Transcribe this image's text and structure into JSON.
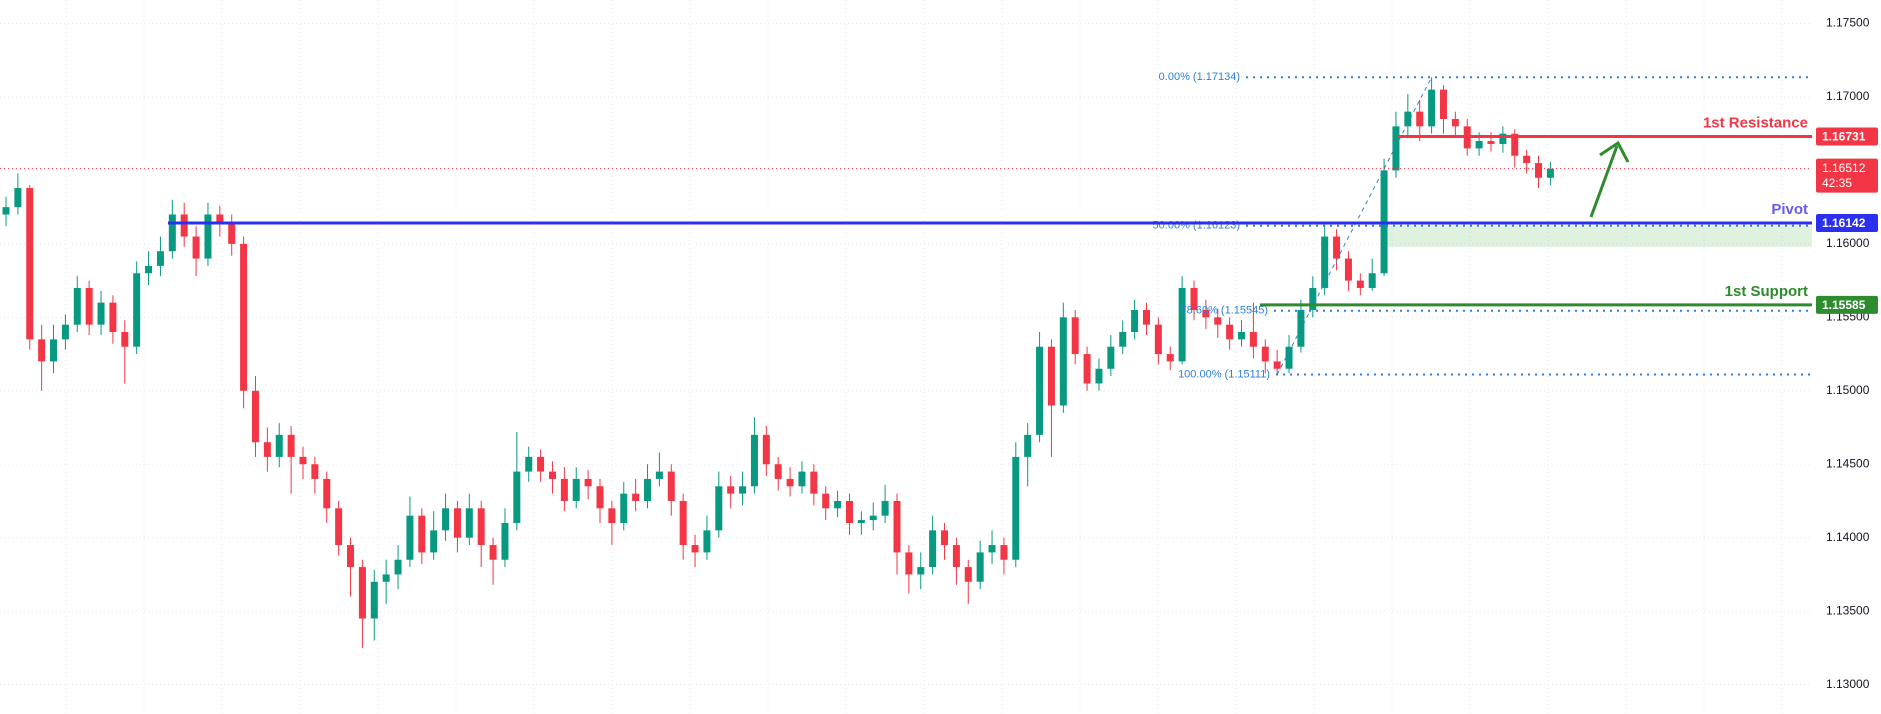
{
  "chart_data": {
    "type": "candlestick",
    "ylim": [
      1.128,
      1.1766
    ],
    "yticks": [
      {
        "value": 1.175,
        "label": "1.17500"
      },
      {
        "value": 1.17,
        "label": "1.17000"
      },
      {
        "value": 1.165,
        "label": "1.16500"
      },
      {
        "value": 1.16,
        "label": "1.16000"
      },
      {
        "value": 1.155,
        "label": "1.15500"
      },
      {
        "value": 1.15,
        "label": "1.15000"
      },
      {
        "value": 1.145,
        "label": "1.14500"
      },
      {
        "value": 1.14,
        "label": "1.14000"
      },
      {
        "value": 1.135,
        "label": "1.13500"
      },
      {
        "value": 1.13,
        "label": "1.13000"
      }
    ],
    "grid": true,
    "up_color": "#089981",
    "down_color": "#f23645",
    "candles": {
      "open": [
        1.162,
        1.1625,
        1.1638,
        1.1535,
        1.152,
        1.1535,
        1.1545,
        1.157,
        1.1545,
        1.156,
        1.154,
        1.153,
        1.158,
        1.1585,
        1.1595,
        1.162,
        1.1605,
        1.159,
        1.162,
        1.1615,
        1.16,
        1.15,
        1.1465,
        1.1455,
        1.147,
        1.1455,
        1.145,
        1.144,
        1.142,
        1.1395,
        1.138,
        1.1345,
        1.137,
        1.1375,
        1.1385,
        1.1415,
        1.139,
        1.1405,
        1.142,
        1.14,
        1.142,
        1.1395,
        1.1385,
        1.141,
        1.1445,
        1.1455,
        1.1445,
        1.144,
        1.1425,
        1.144,
        1.1435,
        1.142,
        1.141,
        1.143,
        1.1425,
        1.144,
        1.1445,
        1.1425,
        1.1395,
        1.139,
        1.1405,
        1.1435,
        1.143,
        1.1435,
        1.147,
        1.145,
        1.144,
        1.1435,
        1.1445,
        1.143,
        1.142,
        1.1425,
        1.141,
        1.1412,
        1.1415,
        1.1425,
        1.139,
        1.1375,
        1.138,
        1.1405,
        1.1395,
        1.138,
        1.137,
        1.139,
        1.1395,
        1.1385,
        1.1455,
        1.147,
        1.153,
        1.149,
        1.155,
        1.1525,
        1.1505,
        1.1515,
        1.153,
        1.154,
        1.1555,
        1.1545,
        1.1525,
        1.152,
        1.157,
        1.1555,
        1.155,
        1.1545,
        1.1535,
        1.154,
        1.153,
        1.152,
        1.1515,
        1.153,
        1.1555,
        1.157,
        1.1605,
        1.159,
        1.1575,
        1.157,
        1.158,
        1.165,
        1.168,
        1.169,
        1.168,
        1.1705,
        1.1685,
        1.168,
        1.1665,
        1.167,
        1.1668,
        1.1675,
        1.166,
        1.1655,
        1.1645
      ],
      "high": [
        1.1632,
        1.1648,
        1.164,
        1.1545,
        1.1545,
        1.1552,
        1.1578,
        1.1575,
        1.1568,
        1.1565,
        1.1548,
        1.1588,
        1.1595,
        1.1605,
        1.163,
        1.1628,
        1.1612,
        1.1628,
        1.1626,
        1.162,
        1.1605,
        1.151,
        1.1475,
        1.1478,
        1.1476,
        1.1462,
        1.1455,
        1.1445,
        1.1425,
        1.14,
        1.1385,
        1.1378,
        1.1385,
        1.1395,
        1.1428,
        1.142,
        1.1418,
        1.143,
        1.1425,
        1.143,
        1.1425,
        1.14,
        1.142,
        1.1472,
        1.1462,
        1.146,
        1.1452,
        1.1448,
        1.1448,
        1.1446,
        1.144,
        1.1425,
        1.1438,
        1.144,
        1.145,
        1.1458,
        1.145,
        1.143,
        1.1402,
        1.1415,
        1.1445,
        1.1442,
        1.1445,
        1.1482,
        1.1476,
        1.1455,
        1.1448,
        1.1452,
        1.145,
        1.1435,
        1.1432,
        1.143,
        1.1418,
        1.1424,
        1.1436,
        1.143,
        1.1395,
        1.139,
        1.1415,
        1.141,
        1.14,
        1.1385,
        1.1398,
        1.1405,
        1.14,
        1.1465,
        1.1478,
        1.154,
        1.1535,
        1.156,
        1.1555,
        1.153,
        1.1522,
        1.1538,
        1.1548,
        1.1562,
        1.156,
        1.155,
        1.153,
        1.1578,
        1.1575,
        1.1562,
        1.1556,
        1.155,
        1.1548,
        1.156,
        1.1535,
        1.1528,
        1.1538,
        1.1562,
        1.1578,
        1.1613,
        1.161,
        1.1595,
        1.158,
        1.159,
        1.1658,
        1.169,
        1.1702,
        1.1698,
        1.17134,
        1.1708,
        1.169,
        1.1685,
        1.1676,
        1.1676,
        1.168,
        1.1678,
        1.1664,
        1.166,
        1.1656
      ],
      "low": [
        1.1612,
        1.162,
        1.1528,
        1.15,
        1.1512,
        1.1528,
        1.154,
        1.1538,
        1.1538,
        1.1532,
        1.1505,
        1.1525,
        1.1572,
        1.1578,
        1.159,
        1.1598,
        1.1578,
        1.1585,
        1.1605,
        1.1592,
        1.1488,
        1.1455,
        1.1445,
        1.1448,
        1.143,
        1.144,
        1.143,
        1.141,
        1.1388,
        1.136,
        1.1325,
        1.133,
        1.1355,
        1.1365,
        1.138,
        1.1382,
        1.1385,
        1.1398,
        1.139,
        1.1395,
        1.138,
        1.1368,
        1.138,
        1.1405,
        1.1438,
        1.1438,
        1.143,
        1.1418,
        1.142,
        1.1426,
        1.141,
        1.1395,
        1.1405,
        1.1418,
        1.142,
        1.1435,
        1.1415,
        1.1385,
        1.138,
        1.1385,
        1.14,
        1.142,
        1.1422,
        1.143,
        1.1442,
        1.1432,
        1.1428,
        1.143,
        1.1422,
        1.1412,
        1.1414,
        1.1402,
        1.1402,
        1.1405,
        1.141,
        1.1375,
        1.1362,
        1.1365,
        1.1375,
        1.1385,
        1.1368,
        1.1355,
        1.1365,
        1.1382,
        1.1375,
        1.138,
        1.1435,
        1.1465,
        1.1455,
        1.1485,
        1.1518,
        1.15,
        1.15,
        1.151,
        1.1525,
        1.1535,
        1.1538,
        1.1518,
        1.1514,
        1.1518,
        1.1548,
        1.1542,
        1.1536,
        1.1528,
        1.153,
        1.1522,
        1.1512,
        1.15111,
        1.1512,
        1.1526,
        1.155,
        1.1565,
        1.1582,
        1.1568,
        1.1565,
        1.1568,
        1.1578,
        1.1645,
        1.1672,
        1.167,
        1.1675,
        1.1675,
        1.1672,
        1.166,
        1.166,
        1.1663,
        1.1662,
        1.1652,
        1.1648,
        1.1638,
        1.164
      ],
      "close": [
        1.1625,
        1.1638,
        1.1535,
        1.152,
        1.1535,
        1.1545,
        1.157,
        1.1545,
        1.156,
        1.154,
        1.153,
        1.158,
        1.1585,
        1.1595,
        1.162,
        1.1605,
        1.159,
        1.162,
        1.1615,
        1.16,
        1.15,
        1.1465,
        1.1455,
        1.147,
        1.1455,
        1.145,
        1.144,
        1.142,
        1.1395,
        1.138,
        1.1345,
        1.137,
        1.1375,
        1.1385,
        1.1415,
        1.139,
        1.1405,
        1.142,
        1.14,
        1.142,
        1.1395,
        1.1385,
        1.141,
        1.1445,
        1.1455,
        1.1445,
        1.144,
        1.1425,
        1.144,
        1.1435,
        1.142,
        1.141,
        1.143,
        1.1425,
        1.144,
        1.1445,
        1.1425,
        1.1395,
        1.139,
        1.1405,
        1.1435,
        1.143,
        1.1435,
        1.147,
        1.145,
        1.144,
        1.1435,
        1.1445,
        1.143,
        1.142,
        1.1425,
        1.141,
        1.1412,
        1.1415,
        1.1425,
        1.139,
        1.1375,
        1.138,
        1.1405,
        1.1395,
        1.138,
        1.137,
        1.139,
        1.1395,
        1.1385,
        1.1455,
        1.147,
        1.153,
        1.149,
        1.155,
        1.1525,
        1.1505,
        1.1515,
        1.153,
        1.154,
        1.1555,
        1.1545,
        1.1525,
        1.152,
        1.157,
        1.1555,
        1.155,
        1.1545,
        1.1535,
        1.154,
        1.153,
        1.152,
        1.1515,
        1.153,
        1.1555,
        1.157,
        1.1605,
        1.159,
        1.1575,
        1.157,
        1.158,
        1.165,
        1.168,
        1.169,
        1.168,
        1.1705,
        1.1685,
        1.168,
        1.1665,
        1.167,
        1.1668,
        1.1675,
        1.166,
        1.1655,
        1.1645,
        1.16512
      ]
    },
    "levels": [
      {
        "name": "1st Resistance",
        "value": 1.16731,
        "color": "#f23645"
      },
      {
        "name": "Pivot",
        "value": 1.16142,
        "color": "#2b2ff0"
      },
      {
        "name": "1st Support",
        "value": 1.15585,
        "color": "#2e8b2e"
      }
    ],
    "zone": {
      "high": 1.16123,
      "low": 1.1598,
      "color": "#4caf50"
    },
    "fibonacci": [
      {
        "label": "0.00% (1.17134)",
        "value": 1.17134
      },
      {
        "label": "50.00% (1.16123)",
        "value": 1.16123
      },
      {
        "label": "78.60% (1.15545)",
        "value": 1.15545
      },
      {
        "label": "100.00% (1.15111)",
        "value": 1.15111
      }
    ],
    "fib_color": "#2f7fd6",
    "last_price": {
      "value": 1.16512,
      "countdown": "42:35",
      "color": "#f23645"
    }
  }
}
